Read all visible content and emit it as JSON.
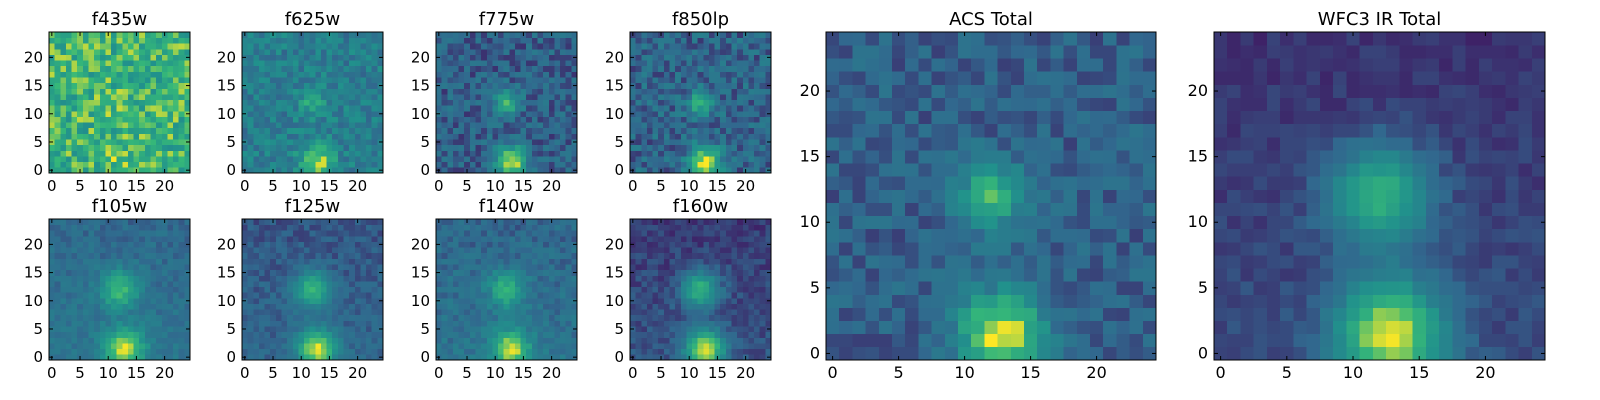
{
  "figure": {
    "background": "#ffffff",
    "colormap": "viridis",
    "colors": [
      "#440154",
      "#31688e",
      "#21918c",
      "#35b779",
      "#fde725"
    ]
  },
  "chart_data": [
    {
      "type": "heatmap",
      "title": "f435w",
      "xlim": [
        -0.5,
        24.5
      ],
      "ylim": [
        -0.5,
        24.5
      ],
      "xticks": [
        0,
        5,
        10,
        15,
        20
      ],
      "yticks": [
        0,
        5,
        10,
        15,
        20
      ],
      "grid": false,
      "colormap": "viridis",
      "values": []
    },
    {
      "type": "heatmap",
      "title": "f625w",
      "xlim": [
        -0.5,
        24.5
      ],
      "ylim": [
        -0.5,
        24.5
      ],
      "xticks": [
        0,
        5,
        10,
        15,
        20
      ],
      "yticks": [
        0,
        5,
        10,
        15,
        20
      ],
      "grid": false,
      "colormap": "viridis",
      "values": []
    },
    {
      "type": "heatmap",
      "title": "f775w",
      "xlim": [
        -0.5,
        24.5
      ],
      "ylim": [
        -0.5,
        24.5
      ],
      "xticks": [
        0,
        5,
        10,
        15,
        20
      ],
      "yticks": [
        0,
        5,
        10,
        15,
        20
      ],
      "grid": false,
      "colormap": "viridis",
      "values": []
    },
    {
      "type": "heatmap",
      "title": "f850lp",
      "xlim": [
        -0.5,
        24.5
      ],
      "ylim": [
        -0.5,
        24.5
      ],
      "xticks": [
        0,
        5,
        10,
        15,
        20
      ],
      "yticks": [
        0,
        5,
        10,
        15,
        20
      ],
      "grid": false,
      "colormap": "viridis",
      "values": []
    },
    {
      "type": "heatmap",
      "title": "f105w",
      "xlim": [
        -0.5,
        24.5
      ],
      "ylim": [
        -0.5,
        24.5
      ],
      "xticks": [
        0,
        5,
        10,
        15,
        20
      ],
      "yticks": [
        0,
        5,
        10,
        15,
        20
      ],
      "grid": false,
      "colormap": "viridis",
      "values": []
    },
    {
      "type": "heatmap",
      "title": "f125w",
      "xlim": [
        -0.5,
        24.5
      ],
      "ylim": [
        -0.5,
        24.5
      ],
      "xticks": [
        0,
        5,
        10,
        15,
        20
      ],
      "yticks": [
        0,
        5,
        10,
        15,
        20
      ],
      "grid": false,
      "colormap": "viridis",
      "values": []
    },
    {
      "type": "heatmap",
      "title": "f140w",
      "xlim": [
        -0.5,
        24.5
      ],
      "ylim": [
        -0.5,
        24.5
      ],
      "xticks": [
        0,
        5,
        10,
        15,
        20
      ],
      "yticks": [
        0,
        5,
        10,
        15,
        20
      ],
      "grid": false,
      "colormap": "viridis",
      "values": []
    },
    {
      "type": "heatmap",
      "title": "f160w",
      "xlim": [
        -0.5,
        24.5
      ],
      "ylim": [
        -0.5,
        24.5
      ],
      "xticks": [
        0,
        5,
        10,
        15,
        20
      ],
      "yticks": [
        0,
        5,
        10,
        15,
        20
      ],
      "grid": false,
      "colormap": "viridis",
      "values": []
    },
    {
      "type": "heatmap",
      "title": "ACS Total",
      "xlim": [
        -0.5,
        24.5
      ],
      "ylim": [
        -0.5,
        24.5
      ],
      "xticks": [
        0,
        5,
        10,
        15,
        20
      ],
      "yticks": [
        0,
        5,
        10,
        15,
        20
      ],
      "grid": false,
      "colormap": "viridis",
      "values": []
    },
    {
      "type": "heatmap",
      "title": "WFC3 IR Total",
      "xlim": [
        -0.5,
        24.5
      ],
      "ylim": [
        -0.5,
        24.5
      ],
      "xticks": [
        0,
        5,
        10,
        15,
        20
      ],
      "yticks": [
        0,
        5,
        10,
        15,
        20
      ],
      "grid": false,
      "colormap": "viridis",
      "values": []
    }
  ]
}
